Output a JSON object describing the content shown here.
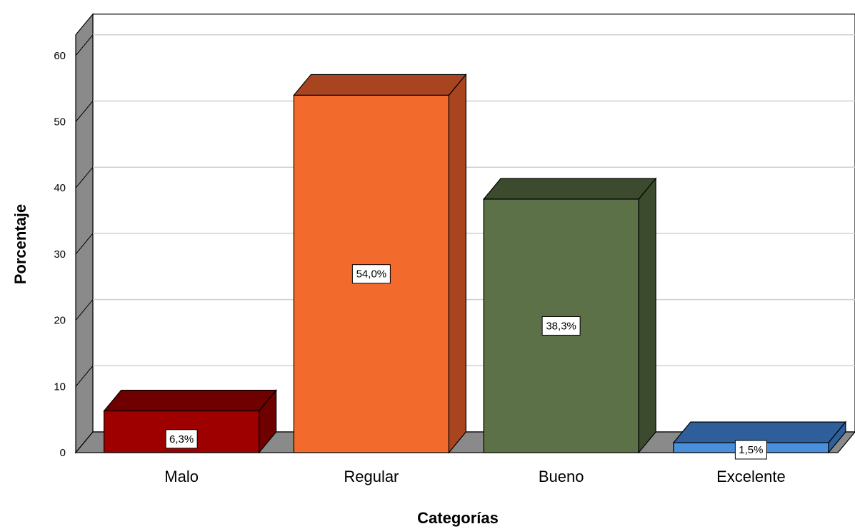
{
  "chart_data": {
    "type": "bar",
    "categories": [
      "Malo",
      "Regular",
      "Bueno",
      "Excelente"
    ],
    "values": [
      6.3,
      54.0,
      38.3,
      1.5
    ],
    "data_labels": [
      "6,3%",
      "54,0%",
      "38,3%",
      "1,5%"
    ],
    "colors": {
      "front": [
        "#9e0000",
        "#f26a2c",
        "#5d7148",
        "#4a8fdc"
      ],
      "top": [
        "#6e0000",
        "#a8441f",
        "#3c4a2e",
        "#2f5f9a"
      ],
      "side": [
        "#6e0000",
        "#a8441f",
        "#3c4a2e",
        "#2f5f9a"
      ]
    },
    "title": "",
    "xlabel": "Categorías",
    "ylabel": "Porcentaje",
    "ylim": [
      0,
      60
    ],
    "yticks": [
      0,
      10,
      20,
      30,
      40,
      50,
      60
    ],
    "grid": true,
    "legend": "none"
  }
}
